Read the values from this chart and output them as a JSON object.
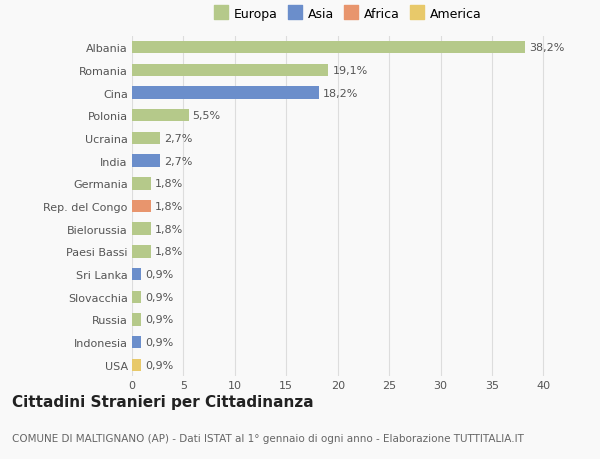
{
  "categories": [
    "USA",
    "Indonesia",
    "Russia",
    "Slovacchia",
    "Sri Lanka",
    "Paesi Bassi",
    "Bielorussia",
    "Rep. del Congo",
    "Germania",
    "India",
    "Ucraina",
    "Polonia",
    "Cina",
    "Romania",
    "Albania"
  ],
  "values": [
    0.9,
    0.9,
    0.9,
    0.9,
    0.9,
    1.8,
    1.8,
    1.8,
    1.8,
    2.7,
    2.7,
    5.5,
    18.2,
    19.1,
    38.2
  ],
  "labels": [
    "0,9%",
    "0,9%",
    "0,9%",
    "0,9%",
    "0,9%",
    "1,8%",
    "1,8%",
    "1,8%",
    "1,8%",
    "2,7%",
    "2,7%",
    "5,5%",
    "18,2%",
    "19,1%",
    "38,2%"
  ],
  "colors": [
    "#e8c96a",
    "#6b8ecb",
    "#b5c98a",
    "#b5c98a",
    "#6b8ecb",
    "#b5c98a",
    "#b5c98a",
    "#e8956d",
    "#b5c98a",
    "#6b8ecb",
    "#b5c98a",
    "#b5c98a",
    "#6b8ecb",
    "#b5c98a",
    "#b5c98a"
  ],
  "legend_labels": [
    "Europa",
    "Asia",
    "Africa",
    "America"
  ],
  "legend_colors": [
    "#b5c98a",
    "#6b8ecb",
    "#e8956d",
    "#e8c96a"
  ],
  "title": "Cittadini Stranieri per Cittadinanza",
  "subtitle": "COMUNE DI MALTIGNANO (AP) - Dati ISTAT al 1° gennaio di ogni anno - Elaborazione TUTTITALIA.IT",
  "xlim": [
    0,
    42
  ],
  "xticks": [
    0,
    5,
    10,
    15,
    20,
    25,
    30,
    35,
    40
  ],
  "background_color": "#f9f9f9",
  "grid_color": "#dddddd",
  "bar_height": 0.55,
  "title_fontsize": 11,
  "subtitle_fontsize": 7.5,
  "label_fontsize": 8,
  "tick_fontsize": 8,
  "legend_fontsize": 9
}
